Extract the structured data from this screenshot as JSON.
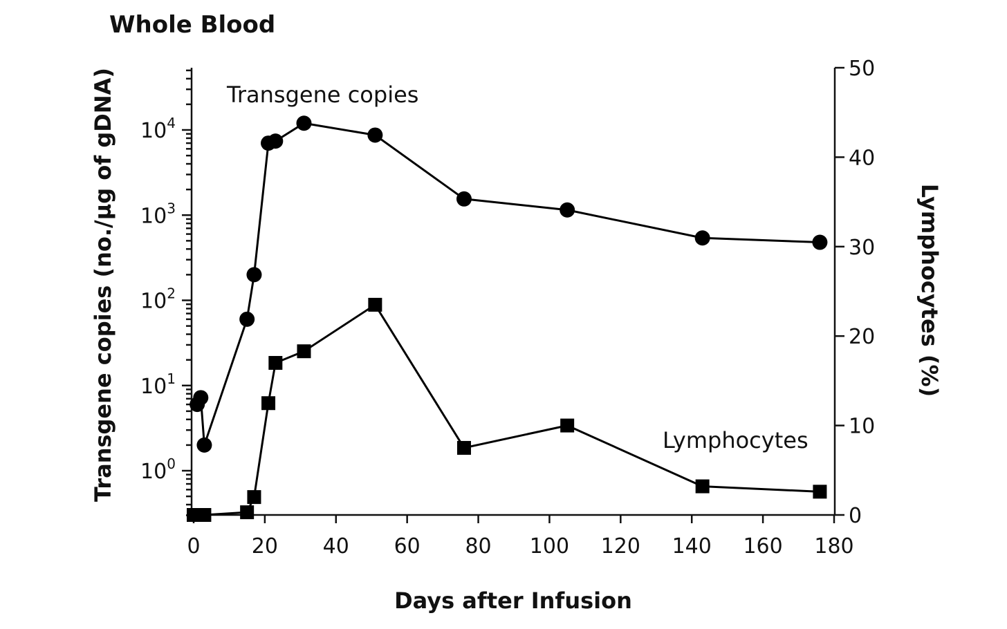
{
  "chart_data": {
    "type": "line",
    "title": "Whole Blood",
    "xlabel": "Days after Infusion",
    "ylabel_left": "Transgene copies (no./µg of gDNA)",
    "ylabel_right": "Lymphocytes (%)",
    "xlim": [
      0,
      180
    ],
    "x_ticks": [
      0,
      20,
      40,
      60,
      80,
      100,
      120,
      140,
      160,
      180
    ],
    "y_left_scale": "log",
    "y_left_ticks": [
      {
        "base": "10",
        "exp": "0",
        "value": 1
      },
      {
        "base": "10",
        "exp": "1",
        "value": 10
      },
      {
        "base": "10",
        "exp": "2",
        "value": 100
      },
      {
        "base": "10",
        "exp": "3",
        "value": 1000
      },
      {
        "base": "10",
        "exp": "4",
        "value": 10000
      }
    ],
    "y_right_lim": [
      0,
      50
    ],
    "y_right_ticks": [
      0,
      10,
      20,
      30,
      40,
      50
    ],
    "grid": false,
    "series": [
      {
        "name": "Transgene copies",
        "axis": "left",
        "marker": "circle",
        "x": [
          1,
          2,
          3,
          15,
          17,
          21,
          23,
          31,
          51,
          76,
          105,
          143,
          176
        ],
        "y": [
          6,
          7.2,
          2,
          60,
          200,
          7000,
          7400,
          12000,
          8700,
          1550,
          1150,
          540,
          480
        ]
      },
      {
        "name": "Lymphocytes",
        "axis": "right",
        "marker": "square",
        "x": [
          0,
          1,
          3,
          15,
          17,
          21,
          23,
          31,
          51,
          76,
          105,
          143,
          176
        ],
        "y": [
          0,
          0,
          0,
          0.3,
          2,
          12.5,
          17,
          18.3,
          23.5,
          7.5,
          10,
          3.2,
          2.6
        ]
      }
    ]
  }
}
